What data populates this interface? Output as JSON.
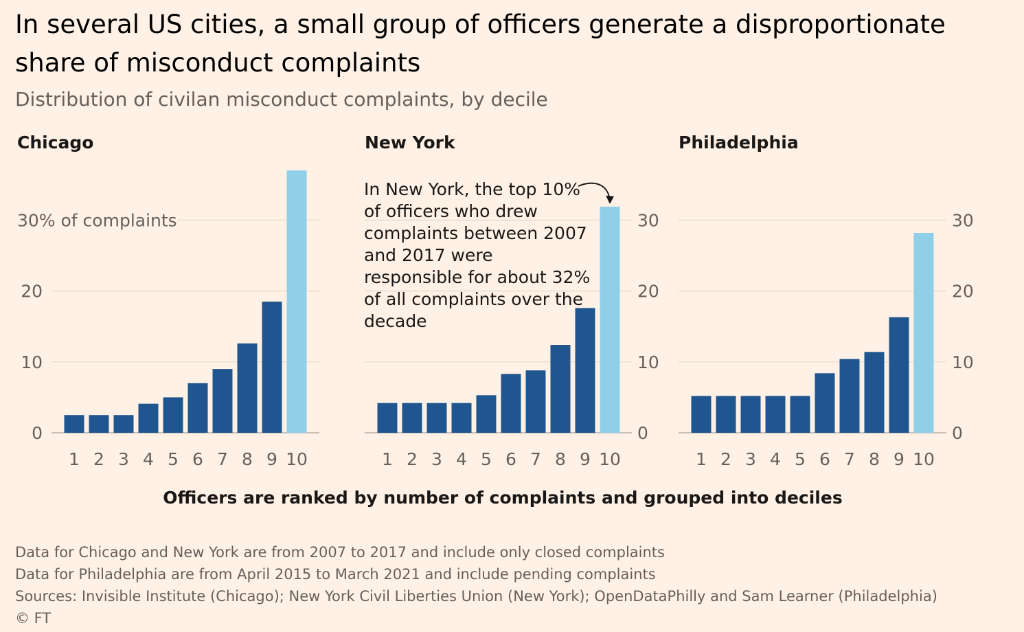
{
  "title": "In several US cities, a small group of officers generate a disproportionate share of misconduct complaints",
  "subtitle": "Distribution of civilan misconduct complaints, by decile",
  "xlabel": "Officers are ranked by number of complaints and grouped into deciles",
  "annotation": "In New York, the top 10% of officers who drew complaints between 2007 and 2017 were responsible for about 32% of all complaints over the decade",
  "footnotes": [
    "Data for Chicago and New York are from 2007 to 2017 and include only closed complaints",
    "Data for Philadelphia are from April 2015 to March 2021 and include pending complaints",
    "Sources: Invisible Institute (Chicago); New York Civil Liberties Union (New York); OpenDataPhilly and Sam Learner (Philadelphia)",
    "© FT"
  ],
  "colors": {
    "bar": "#1f5690",
    "highlight": "#8fd0e8",
    "grid": "#e3d7cc",
    "background": "#fff1e5"
  },
  "chart_data": [
    {
      "type": "bar",
      "title": "Chicago",
      "categories": [
        "1",
        "2",
        "3",
        "4",
        "5",
        "6",
        "7",
        "8",
        "9",
        "10"
      ],
      "values": [
        2.5,
        2.5,
        2.5,
        4.1,
        5.0,
        7.0,
        9.0,
        12.6,
        18.5,
        37.0
      ],
      "yticks": [
        0,
        10,
        20,
        30
      ],
      "ytick_labels": [
        "0",
        "10",
        "20",
        "30% of complaints"
      ],
      "ylim": [
        0,
        37
      ],
      "axis_side": "left",
      "grid": true
    },
    {
      "type": "bar",
      "title": "New York",
      "categories": [
        "1",
        "2",
        "3",
        "4",
        "5",
        "6",
        "7",
        "8",
        "9",
        "10"
      ],
      "values": [
        4.2,
        4.2,
        4.2,
        4.2,
        5.3,
        8.3,
        8.8,
        12.4,
        17.6,
        31.9
      ],
      "yticks": [
        0,
        10,
        20,
        30
      ],
      "ytick_labels": [
        "0",
        "10",
        "20",
        "30"
      ],
      "ylim": [
        0,
        37
      ],
      "axis_side": "right",
      "grid": true
    },
    {
      "type": "bar",
      "title": "Philadelphia",
      "categories": [
        "1",
        "2",
        "3",
        "4",
        "5",
        "6",
        "7",
        "8",
        "9",
        "10"
      ],
      "values": [
        5.2,
        5.2,
        5.2,
        5.2,
        5.2,
        8.4,
        10.4,
        11.4,
        16.3,
        28.2
      ],
      "yticks": [
        0,
        10,
        20,
        30
      ],
      "ytick_labels": [
        "0",
        "10",
        "20",
        "30"
      ],
      "ylim": [
        0,
        37
      ],
      "axis_side": "right",
      "grid": true
    }
  ]
}
